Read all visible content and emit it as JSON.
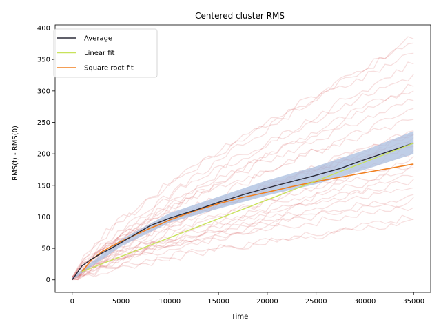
{
  "chart_data": {
    "type": "line",
    "title": "Centered cluster RMS",
    "xlabel": "Time",
    "ylabel": "RMS(t) - RMS(0)",
    "xlim": [
      -1750,
      36750
    ],
    "ylim": [
      -20,
      405
    ],
    "xticks": [
      0,
      5000,
      10000,
      15000,
      20000,
      25000,
      30000,
      35000
    ],
    "yticks": [
      0,
      50,
      100,
      150,
      200,
      250,
      300,
      350,
      400
    ],
    "grid": false,
    "legend_position": "top-left",
    "colors": {
      "average": "#2b2b38",
      "linear_fit": "#c8e25a",
      "sqrt_fit": "#f07f1f",
      "band": "#a9bedf",
      "traces": "#d24b4b"
    },
    "series": [
      {
        "name": "Average",
        "x": [
          0,
          1000,
          2000,
          3000,
          4000,
          5000,
          6000,
          7000,
          8000,
          9000,
          10000,
          12500,
          15000,
          17500,
          20000,
          22500,
          25000,
          27500,
          30000,
          32500,
          35000
        ],
        "values": [
          0,
          22,
          33,
          42,
          50,
          59,
          68,
          77,
          86,
          92,
          98,
          110,
          123,
          135,
          146,
          156,
          166,
          177,
          191,
          204,
          217
        ]
      },
      {
        "name": "Linear fit",
        "x": [
          1000,
          35000
        ],
        "values": [
          13,
          217
        ]
      },
      {
        "name": "Square root fit",
        "x": [
          1000,
          2000,
          3000,
          4000,
          5000,
          6000,
          7000,
          8000,
          9000,
          10000,
          12500,
          15000,
          17500,
          20000,
          22500,
          25000,
          27500,
          30000,
          32500,
          35000
        ],
        "values": [
          13,
          32,
          44,
          53,
          61,
          68,
          75,
          82,
          88,
          95,
          109,
          121,
          131,
          139,
          148,
          156,
          163,
          170,
          177,
          184
        ]
      }
    ],
    "std_band": {
      "x": [
        0,
        5000,
        10000,
        15000,
        20000,
        25000,
        30000,
        35000
      ],
      "lower": [
        0,
        53,
        91,
        113,
        134,
        152,
        175,
        200
      ],
      "upper": [
        4,
        64,
        106,
        132,
        158,
        180,
        206,
        236
      ]
    },
    "trace_endpoints": [
      90,
      100,
      115,
      125,
      135,
      145,
      155,
      165,
      175,
      182,
      190,
      200,
      210,
      215,
      220,
      225,
      230,
      240,
      255,
      270,
      285,
      300,
      310,
      325,
      345,
      360,
      375,
      385
    ]
  }
}
